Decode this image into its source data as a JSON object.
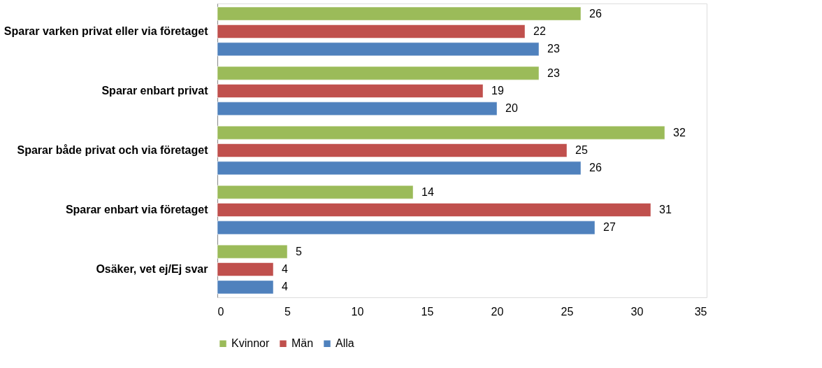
{
  "chart_data": {
    "type": "bar",
    "orientation": "horizontal",
    "categories": [
      "Sparar varken privat eller via företaget",
      "Sparar enbart privat",
      "Sparar både privat och via företaget",
      "Sparar enbart via företaget",
      "Osäker, vet ej/Ej svar"
    ],
    "series": [
      {
        "name": "Kvinnor",
        "color": "#9bbb59",
        "values": [
          26,
          23,
          32,
          14,
          5
        ]
      },
      {
        "name": "Män",
        "color": "#c0504d",
        "values": [
          22,
          19,
          25,
          31,
          4
        ]
      },
      {
        "name": "Alla",
        "color": "#4f81bd",
        "values": [
          23,
          20,
          26,
          27,
          4
        ]
      }
    ],
    "xlim": [
      0,
      35
    ],
    "xticks": [
      0,
      5,
      10,
      15,
      20,
      25,
      30,
      35
    ],
    "data_labels": true,
    "grid": false,
    "legend": "bottom"
  }
}
